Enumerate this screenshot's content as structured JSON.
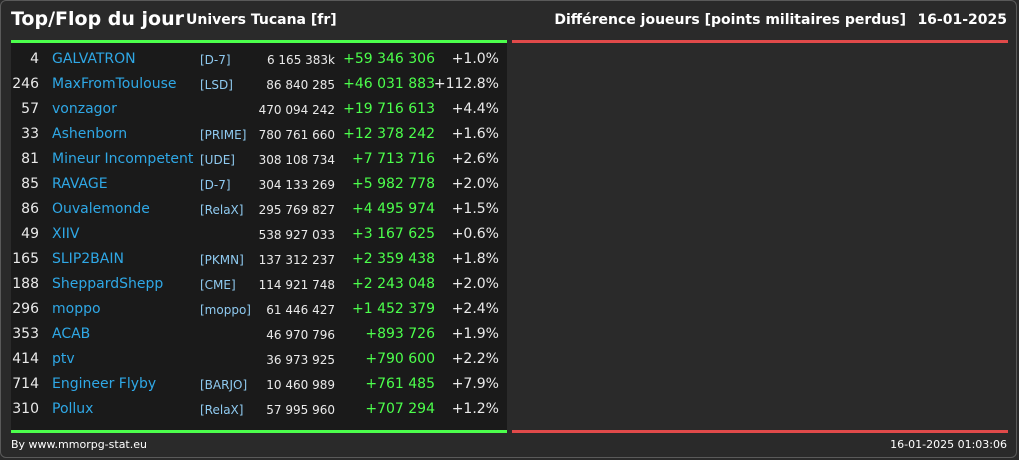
{
  "header": {
    "title": "Top/Flop du jour",
    "server": "Univers Tucana [fr]",
    "category": "Différence joueurs [points militaires perdus]",
    "date": "16-01-2025"
  },
  "colors": {
    "positive": "#4cff4c",
    "negative": "#e04a4a",
    "name": "#2fa8e6"
  },
  "top_rows": [
    {
      "rank": "4",
      "name": "GALVATRON",
      "alliance": "[D-7]",
      "points": "6 165 383k",
      "diff": "+59 346 306",
      "pct": "+1.0%"
    },
    {
      "rank": "246",
      "name": "MaxFromToulouse",
      "alliance": "[LSD]",
      "points": "86 840 285",
      "diff": "+46 031 883",
      "pct": "+112.8%"
    },
    {
      "rank": "57",
      "name": "vonzagor",
      "alliance": "",
      "points": "470 094 242",
      "diff": "+19 716 613",
      "pct": "+4.4%"
    },
    {
      "rank": "33",
      "name": "Ashenborn",
      "alliance": "[PRIME]",
      "points": "780 761 660",
      "diff": "+12 378 242",
      "pct": "+1.6%"
    },
    {
      "rank": "81",
      "name": "Mineur Incompetent",
      "alliance": "[UDE]",
      "points": "308 108 734",
      "diff": "+7 713 716",
      "pct": "+2.6%"
    },
    {
      "rank": "85",
      "name": "RAVAGE",
      "alliance": "[D-7]",
      "points": "304 133 269",
      "diff": "+5 982 778",
      "pct": "+2.0%"
    },
    {
      "rank": "86",
      "name": "Ouvalemonde",
      "alliance": "[RelaX]",
      "points": "295 769 827",
      "diff": "+4 495 974",
      "pct": "+1.5%"
    },
    {
      "rank": "49",
      "name": "XIIV",
      "alliance": "",
      "points": "538 927 033",
      "diff": "+3 167 625",
      "pct": "+0.6%"
    },
    {
      "rank": "165",
      "name": "SLIP2BAIN",
      "alliance": "[PKMN]",
      "points": "137 312 237",
      "diff": "+2 359 438",
      "pct": "+1.8%"
    },
    {
      "rank": "188",
      "name": "SheppardShepp",
      "alliance": "[CME]",
      "points": "114 921 748",
      "diff": "+2 243 048",
      "pct": "+2.0%"
    },
    {
      "rank": "296",
      "name": "moppo",
      "alliance": "[moppo]",
      "points": "61 446 427",
      "diff": "+1 452 379",
      "pct": "+2.4%"
    },
    {
      "rank": "353",
      "name": "ACAB",
      "alliance": "",
      "points": "46 970 796",
      "diff": "+893 726",
      "pct": "+1.9%"
    },
    {
      "rank": "414",
      "name": "ptv",
      "alliance": "",
      "points": "36 973 925",
      "diff": "+790 600",
      "pct": "+2.2%"
    },
    {
      "rank": "714",
      "name": "Engineer Flyby",
      "alliance": "[BARJO]",
      "points": "10 460 989",
      "diff": "+761 485",
      "pct": "+7.9%"
    },
    {
      "rank": "310",
      "name": "Pollux",
      "alliance": "[RelaX]",
      "points": "57 995 960",
      "diff": "+707 294",
      "pct": "+1.2%"
    }
  ],
  "footer": {
    "source": "By www.mmorpg-stat.eu",
    "timestamp": "16-01-2025 01:03:06"
  }
}
